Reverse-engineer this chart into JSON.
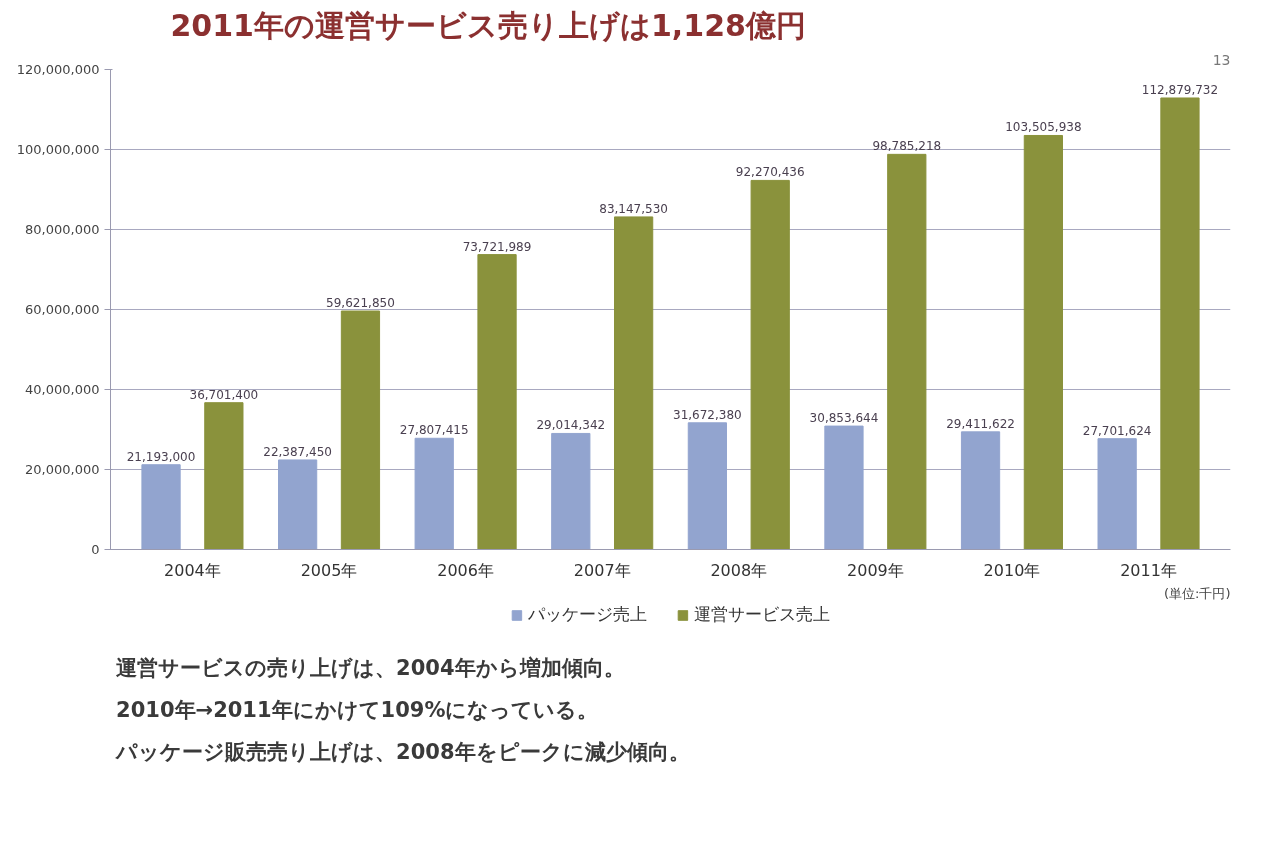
{
  "chart_data": {
    "type": "bar",
    "title": "2011年の運営サービス売り上げは1,128億円",
    "categories": [
      "2004年",
      "2005年",
      "2006年",
      "2007年",
      "2008年",
      "2009年",
      "2010年",
      "2011年"
    ],
    "series": [
      {
        "name": "パッケージ売上",
        "color": "#92a4cf",
        "values": [
          21193000,
          22387450,
          27807415,
          29014342,
          31672380,
          30853644,
          29411622,
          27701624
        ],
        "value_labels": [
          "21,193,000",
          "22,387,450",
          "27,807,415",
          "29,014,342",
          "31,672,380",
          "30,853,644",
          "29,411,622",
          "27,701,624"
        ]
      },
      {
        "name": "運営サービス売上",
        "color": "#8a923c",
        "values": [
          36701400,
          59621850,
          73721989,
          83147530,
          92270436,
          98785218,
          103505938,
          112879732
        ],
        "value_labels": [
          "36,701,400",
          "59,621,850",
          "73,721,989",
          "83,147,530",
          "92,270,436",
          "98,785,218",
          "103,505,938",
          "112,879,732"
        ]
      }
    ],
    "ylim": [
      0,
      120000000
    ],
    "yticks": [
      0,
      {
        "value": 20000000,
        "label": "20,000,000"
      },
      {
        "value": 40000000,
        "label": "40,000,000"
      },
      {
        "value": 60000000,
        "label": "60,000,000"
      },
      {
        "value": 80000000,
        "label": "80,000,000"
      },
      {
        "value": 100000000,
        "label": "100,000,000"
      },
      {
        "value": 120000000,
        "label": "120,000,000"
      }
    ],
    "grid": "y",
    "legend": "bottom",
    "annotations": [
      "(単位:千円)",
      "運営サービスの売り上げは、2004年から増加傾向。",
      "2010年→2011年にかけて109%になっている。",
      "パッケージ販売売り上げは、2008年をピークに減少傾向。",
      "13"
    ]
  }
}
